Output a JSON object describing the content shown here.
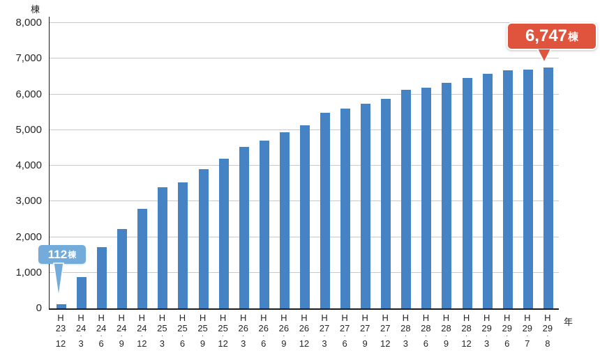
{
  "units": {
    "y": "棟",
    "x": "年"
  },
  "callouts": {
    "first": {
      "value": "112",
      "unit": "棟",
      "color": "#73ABDB"
    },
    "last": {
      "value": "6,747",
      "unit": "棟",
      "color": "#E0543E"
    }
  },
  "colors": {
    "bar": "#4583C5",
    "gridline": "#C9C9C9",
    "axis": "#1A1A1A",
    "callout_first_bg": "#73ABDB",
    "callout_last_bg": "#E0543E"
  },
  "chart_data": {
    "type": "bar",
    "title": "",
    "xlabel": "年",
    "ylabel": "棟",
    "ylim": [
      0,
      8000
    ],
    "grid": true,
    "legend": "none",
    "y_ticks": [
      0,
      1000,
      2000,
      3000,
      4000,
      5000,
      6000,
      7000,
      8000
    ],
    "y_tick_labels": [
      "0",
      "1,000",
      "2,000",
      "3,000",
      "4,000",
      "5,000",
      "6,000",
      "7,000",
      "8,000"
    ],
    "categories": [
      "H23.12",
      "H24.3",
      "H24.6",
      "H24.9",
      "H24.12",
      "H25.3",
      "H25.6",
      "H25.9",
      "H25.12",
      "H26.3",
      "H26.6",
      "H26.9",
      "H26.12",
      "H27.3",
      "H27.6",
      "H27.9",
      "H27.12",
      "H28.3",
      "H28.6",
      "H28.9",
      "H28.12",
      "H29.3",
      "H29.6",
      "H29.7",
      "H29.8"
    ],
    "values": [
      112,
      870,
      1720,
      2230,
      2790,
      3390,
      3530,
      3900,
      4200,
      4530,
      4710,
      4930,
      5130,
      5480,
      5600,
      5740,
      5880,
      6120,
      6190,
      6330,
      6450,
      6580,
      6680,
      6700,
      6747
    ],
    "annotations": [
      {
        "category": "H23.12",
        "label": "112棟"
      },
      {
        "category": "H29.8",
        "label": "6,747棟"
      }
    ]
  }
}
